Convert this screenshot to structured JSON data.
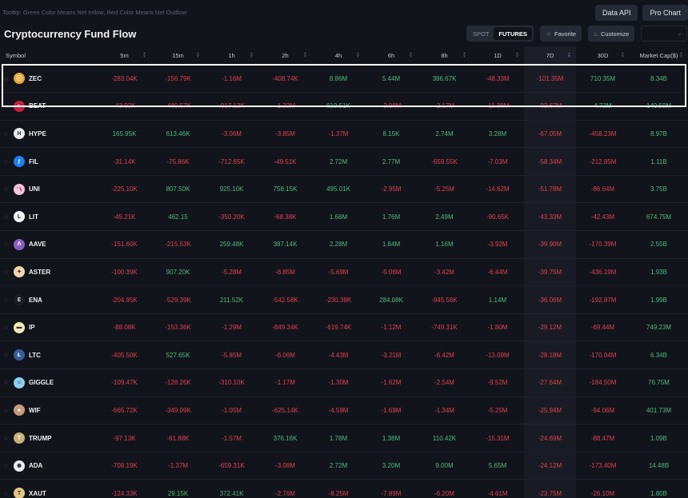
{
  "tooltip": "Tooltip: Green Color Means Net Inflow, Red Color Means Net Outflow",
  "header": {
    "title": "Cryptocurrency Fund Flow",
    "data_api_label": "Data API",
    "pro_chart_label": "Pro Chart"
  },
  "controls": {
    "spot_label": "SPOT",
    "futures_label": "FUTURES",
    "active_market": "FUTURES",
    "favorite_label": "Favorite",
    "customize_label": "Customize",
    "dropdown_value": ""
  },
  "colors": {
    "inflow": "#4dbb7c",
    "outflow": "#e0414e",
    "background": "#12141b",
    "sorted_column_bg": "#181b23",
    "sort_active": "#3a6fd8"
  },
  "table": {
    "sorted_column": "7D",
    "columns": [
      "Symbol",
      "5m",
      "15m",
      "1h",
      "2h",
      "4h",
      "6h",
      "8h",
      "1D",
      "7D",
      "30D",
      "Market Cap($)"
    ],
    "rows": [
      {
        "symbol": "ZEC",
        "icon": "zcash-coin-icon",
        "icon_color": "#e8a93a",
        "icon_glyph": "ⓩ",
        "values": [
          "-283.04K",
          "-156.79K",
          "-1.16M",
          "-408.74K",
          "8.86M",
          "5.44M",
          "386.67K",
          "-48.33M",
          "-101.35M",
          "710.35M",
          "8.34B"
        ]
      },
      {
        "symbol": "BEAT",
        "icon": "beat-coin-icon",
        "icon_color": "#c8203a",
        "icon_glyph": "◐",
        "values": [
          "-43.92K",
          "-489.57K",
          "-917.12K",
          "-1.22M",
          "619.51K",
          "-2.08M",
          "-2.17M",
          "-11.38M",
          "-92.67M",
          "4.72M",
          "149.59M"
        ]
      },
      {
        "symbol": "HYPE",
        "icon": "hype-coin-icon",
        "icon_color": "#e8e8e8",
        "icon_glyph": "H",
        "values": [
          "165.95K",
          "613.46K",
          "-3.06M",
          "-3.85M",
          "-1.37M",
          "8.15K",
          "2.74M",
          "3.28M",
          "-67.05M",
          "-458.23M",
          "8.97B"
        ]
      },
      {
        "symbol": "FIL",
        "icon": "filecoin-icon",
        "icon_color": "#1e7ef0",
        "icon_glyph": "ƒ",
        "values": [
          "-31.14K",
          "-75.86K",
          "-712.65K",
          "-49.51K",
          "2.72M",
          "2.77M",
          "-659.55K",
          "-7.03M",
          "-58.34M",
          "-212.85M",
          "1.11B"
        ]
      },
      {
        "symbol": "UNI",
        "icon": "uniswap-icon",
        "icon_color": "#f6c3dd",
        "icon_glyph": "🦄",
        "values": [
          "-225.10K",
          "807.50K",
          "925.10K",
          "758.15K",
          "495.01K",
          "-2.95M",
          "-5.25M",
          "-14.62M",
          "-51.78M",
          "-86.64M",
          "3.75B"
        ]
      },
      {
        "symbol": "LIT",
        "icon": "lit-coin-icon",
        "icon_color": "#f2f2f2",
        "icon_glyph": "L",
        "values": [
          "-45.21K",
          "462.15",
          "-350.20K",
          "-68.38K",
          "1.68M",
          "1.76M",
          "2.49M",
          "-90.65K",
          "-43.33M",
          "-42.43M",
          "674.75M"
        ]
      },
      {
        "symbol": "AAVE",
        "icon": "aave-icon",
        "icon_color": "#8a5fc4",
        "icon_glyph": "Λ",
        "values": [
          "-151.60K",
          "-215.53K",
          "259.48K",
          "387.14K",
          "2.28M",
          "1.84M",
          "1.16M",
          "-3.92M",
          "-39.90M",
          "-170.39M",
          "2.55B"
        ]
      },
      {
        "symbol": "ASTER",
        "icon": "aster-icon",
        "icon_color": "#f3d7b0",
        "icon_glyph": "✦",
        "values": [
          "-100.39K",
          "907.20K",
          "-5.28M",
          "-8.85M",
          "-5.69M",
          "-5.06M",
          "-3.42M",
          "-6.44M",
          "-39.75M",
          "-436.19M",
          "1.93B"
        ]
      },
      {
        "symbol": "ENA",
        "icon": "ethena-icon",
        "icon_color": "#1b1d24",
        "icon_glyph": "Ɛ",
        "values": [
          "-204.95K",
          "-529.39K",
          "211.52K",
          "-542.58K",
          "-230.38K",
          "284.08K",
          "-945.56K",
          "1.14M",
          "-36.06M",
          "-192.87M",
          "1.99B"
        ]
      },
      {
        "symbol": "IP",
        "icon": "story-ip-icon",
        "icon_color": "#f5e6b8",
        "icon_glyph": "▬",
        "values": [
          "-88.08K",
          "-153.36K",
          "-1.29M",
          "-849.34K",
          "-619.74K",
          "-1.12M",
          "-749.31K",
          "-1.80M",
          "-29.12M",
          "-69.44M",
          "749.23M"
        ]
      },
      {
        "symbol": "LTC",
        "icon": "litecoin-icon",
        "icon_color": "#345d9d",
        "icon_glyph": "Ł",
        "values": [
          "-405.50K",
          "527.65K",
          "-5.85M",
          "-6.06M",
          "-4.43M",
          "-3.21M",
          "-6.42M",
          "-13.09M",
          "-28.18M",
          "-170.04M",
          "6.34B"
        ]
      },
      {
        "symbol": "GIGGLE",
        "icon": "giggle-icon",
        "icon_color": "#8ccff0",
        "icon_glyph": "☺",
        "values": [
          "-109.47K",
          "-128.26K",
          "-310.10K",
          "-1.17M",
          "-1.30M",
          "-1.62M",
          "-2.54M",
          "-9.52M",
          "-27.64M",
          "-184.50M",
          "76.75M"
        ]
      },
      {
        "symbol": "WIF",
        "icon": "dogwifhat-icon",
        "icon_color": "#c89b7b",
        "icon_glyph": "●",
        "values": [
          "-665.72K",
          "-349.09K",
          "-1.05M",
          "-625.14K",
          "-4.59M",
          "-1.69M",
          "-1.34M",
          "-5.25M",
          "-25.94M",
          "-94.06M",
          "401.73M"
        ]
      },
      {
        "symbol": "TRUMP",
        "icon": "trump-coin-icon",
        "icon_color": "#c9b27a",
        "icon_glyph": "T",
        "values": [
          "-97.13K",
          "-61.88K",
          "-1.57M",
          "376.16K",
          "1.78M",
          "1.38M",
          "110.42K",
          "-15.31M",
          "-24.69M",
          "-88.47M",
          "1.09B"
        ]
      },
      {
        "symbol": "ADA",
        "icon": "cardano-icon",
        "icon_color": "#e8ecf6",
        "icon_glyph": "✺",
        "values": [
          "-708.19K",
          "-1.37M",
          "-659.31K",
          "-3.08M",
          "2.72M",
          "3.20M",
          "9.00M",
          "5.65M",
          "-24.12M",
          "-173.40M",
          "14.48B"
        ]
      },
      {
        "symbol": "XAUT",
        "icon": "tether-gold-icon",
        "icon_color": "#e3c784",
        "icon_glyph": "T",
        "values": [
          "-124.33K",
          "29.15K",
          "372.41K",
          "-2.76M",
          "-8.25M",
          "-7.89M",
          "-6.20M",
          "-4.61M",
          "-23.75M",
          "-26.10M",
          "1.80B"
        ]
      }
    ]
  }
}
